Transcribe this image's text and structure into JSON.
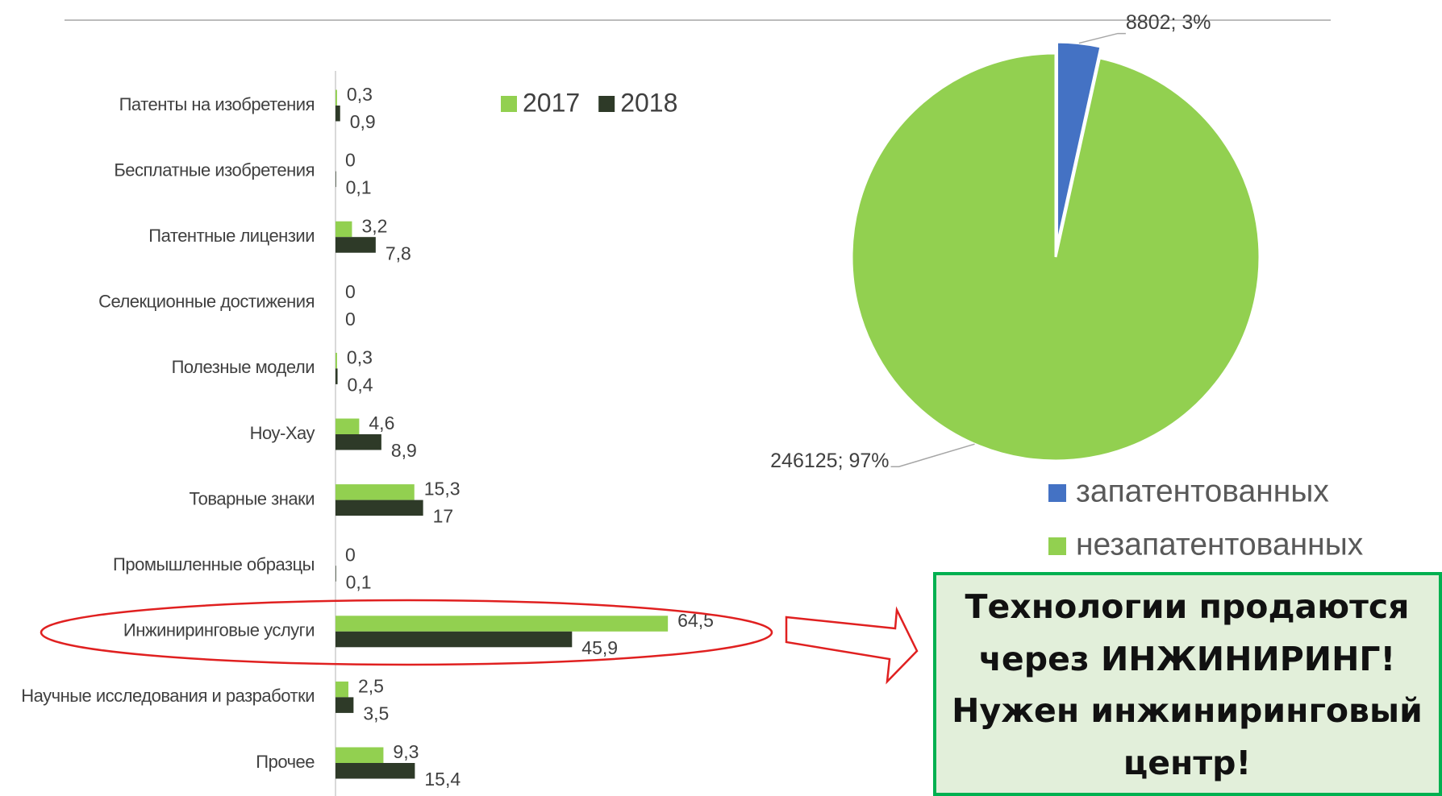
{
  "chart_data": [
    {
      "type": "hbar",
      "categories": [
        "Патенты на изобретения",
        "Бесплатные изобретения",
        "Патентные лицензии",
        "Селекционные достижения",
        "Полезные модели",
        "Ноу-Хау",
        "Товарные знаки",
        "Промышленные образцы",
        "Инжиниринговые услуги",
        "Научные исследования и разработки",
        "Прочее"
      ],
      "series": [
        {
          "name": "2017",
          "color": "#92d050",
          "values": [
            0.3,
            0,
            3.2,
            0,
            0.3,
            4.6,
            15.3,
            0,
            64.5,
            2.5,
            9.3
          ],
          "value_labels": [
            "0,3",
            "0",
            "3,2",
            "0",
            "0,3",
            "4,6",
            "15,3",
            "0",
            "64,5",
            "2,5",
            "9,3"
          ]
        },
        {
          "name": "2018",
          "color": "#2e3a28",
          "values": [
            0.9,
            0.1,
            7.8,
            0,
            0.4,
            8.9,
            17,
            0.1,
            45.9,
            3.5,
            15.4
          ],
          "value_labels": [
            "0,9",
            "0,1",
            "7,8",
            "0",
            "0,4",
            "8,9",
            "17",
            "0,1",
            "45,9",
            "3,5",
            "15,4"
          ]
        }
      ],
      "xlim": [
        0,
        100
      ],
      "legend": "top"
    },
    {
      "type": "pie",
      "categories": [
        "запатентованных",
        "незапатентованных"
      ],
      "values": [
        8802,
        246125
      ],
      "value_labels": [
        "8802; 3%",
        "246125; 97%"
      ],
      "colors": [
        "#4472c4",
        "#92d050"
      ],
      "exploded": [
        true,
        false
      ],
      "legend": "bottom-right"
    }
  ],
  "callout": {
    "lines": [
      "Технологии продаются",
      "через ИНЖИНИРИНГ!",
      "Нужен инжиниринговый",
      "центр!"
    ]
  }
}
